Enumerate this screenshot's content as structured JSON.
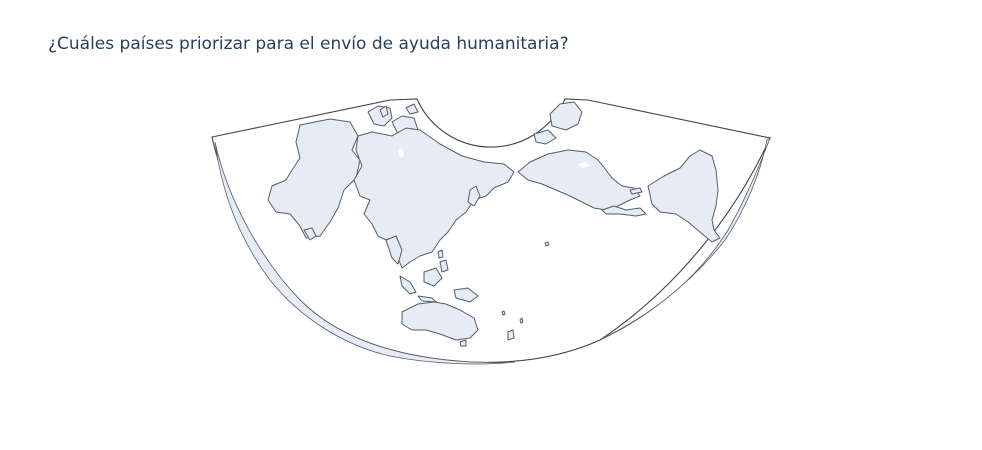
{
  "title": "¿Cuáles países priorizar para el envío de ayuda humanitaria?",
  "map": {
    "projection": "conic",
    "land_color": "#e5ecf6",
    "coastline_color": "#555d66",
    "frame_color": "#444444",
    "background_color": "#ffffff"
  }
}
